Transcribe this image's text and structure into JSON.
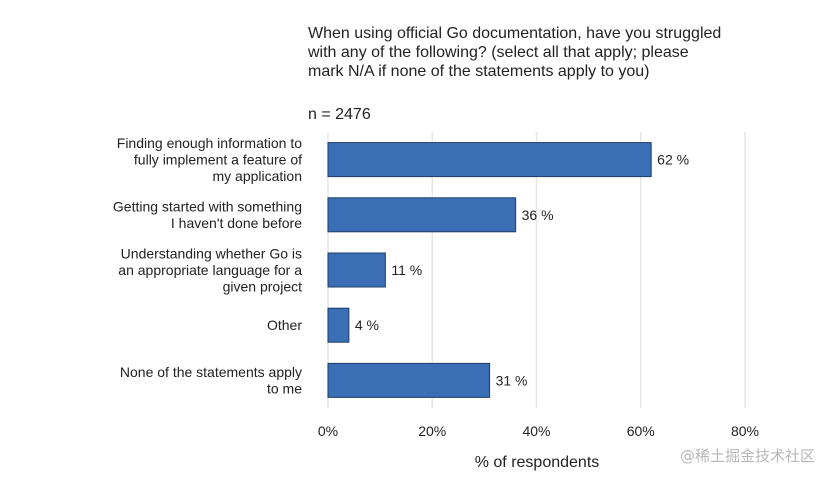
{
  "chart_data": {
    "type": "bar",
    "orientation": "horizontal",
    "title": "When using official Go documentation, have you struggled with any of the following? (select all that apply; please mark N/A if none of the statements apply to you)",
    "subtitle": "n = 2476",
    "categories": [
      "Finding enough information to fully implement a feature of my application",
      "Getting started with something I haven't done before",
      "Understanding whether Go is an appropriate language for a given project",
      "Other",
      "None of the statements apply to me"
    ],
    "category_lines": [
      [
        "Finding enough information to",
        "fully implement a feature of",
        "my application"
      ],
      [
        "Getting started with something",
        "I haven't done before"
      ],
      [
        "Understanding whether Go is",
        "an appropriate language for a",
        "given project"
      ],
      [
        "Other"
      ],
      [
        "None of the statements apply",
        "to me"
      ]
    ],
    "values": [
      62,
      36,
      11,
      4,
      31
    ],
    "data_labels": [
      "62 %",
      "36 %",
      "11 %",
      "4 %",
      "31 %"
    ],
    "xlabel": "% of respondents",
    "ylabel": "",
    "xlim": [
      0,
      80
    ],
    "xticks": [
      0,
      20,
      40,
      60,
      80
    ],
    "xtick_labels": [
      "0%",
      "20%",
      "40%",
      "60%",
      "80%"
    ],
    "grid": "vertical",
    "bar_color": "#3a6fb5",
    "bar_edge_color": "#1e3c66",
    "grid_color": "#e6e6e6"
  },
  "watermark": "@稀土掘金技术社区"
}
